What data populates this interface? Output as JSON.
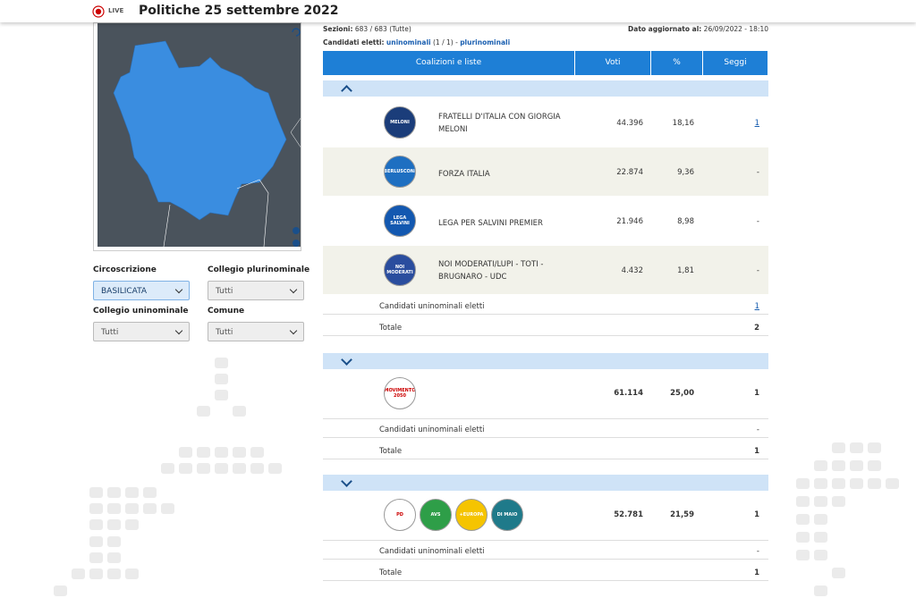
{
  "header": {
    "live": "LIVE",
    "title": "Politiche 25 settembre 2022"
  },
  "info": {
    "sezioni_label": "Sezioni:",
    "sezioni_value": "683 / 683 (Tutte)",
    "aggiornato_label": "Dato aggiornato al:",
    "aggiornato_value": "26/09/2022 - 18:10",
    "eletti_label": "Candidati eletti:",
    "eletti_uninominali": "uninominali",
    "eletti_count": "(1 / 1)",
    "eletti_sep": "-",
    "eletti_plurinominali": "plurinominali"
  },
  "filters": [
    {
      "label": "Circoscrizione",
      "value": "BASILICATA"
    },
    {
      "label": "Collegio plurinominale",
      "value": "Tutti"
    },
    {
      "label": "Collegio uninominale",
      "value": "Tutti"
    },
    {
      "label": "Comune",
      "value": "Tutti"
    }
  ],
  "table": {
    "headers": [
      "Coalizioni e liste",
      "Voti",
      "%",
      "Seggi"
    ],
    "coalitions": [
      {
        "lists": [
          {
            "logo": "MELONI",
            "name": "FRATELLI D'ITALIA CON GIORGIA MELONI",
            "votes": "44.396",
            "pct": "18,16",
            "seats": "1"
          },
          {
            "logo": "BERLUSCONI",
            "name": "FORZA ITALIA",
            "votes": "22.874",
            "pct": "9,36",
            "seats": "-"
          },
          {
            "logo": "LEGA SALVINI",
            "name": "LEGA PER SALVINI PREMIER",
            "votes": "21.946",
            "pct": "8,98",
            "seats": "-"
          },
          {
            "logo": "NOI MODERATI",
            "name": "NOI MODERATI/LUPI - TOTI - BRUGNARO - UDC",
            "votes": "4.432",
            "pct": "1,81",
            "seats": "-"
          }
        ],
        "uninominali_label": "Candidati uninominali eletti",
        "uninominali": "1",
        "total_label": "Totale",
        "total": "2"
      },
      {
        "logos": [
          "MOVIMENTO 2050"
        ],
        "votes": "61.114",
        "pct": "25,00",
        "seats": "1",
        "uninominali_label": "Candidati uninominali eletti",
        "uninominali": "-",
        "total_label": "Totale",
        "total": "1"
      },
      {
        "logos": [
          "PD",
          "AVS",
          "+EUROPA",
          "DI MAIO"
        ],
        "votes": "52.781",
        "pct": "21,59",
        "seats": "1",
        "uninominali_label": "Candidati uninominali eletti",
        "uninominali": "-",
        "total_label": "Totale",
        "total": "1"
      }
    ]
  }
}
